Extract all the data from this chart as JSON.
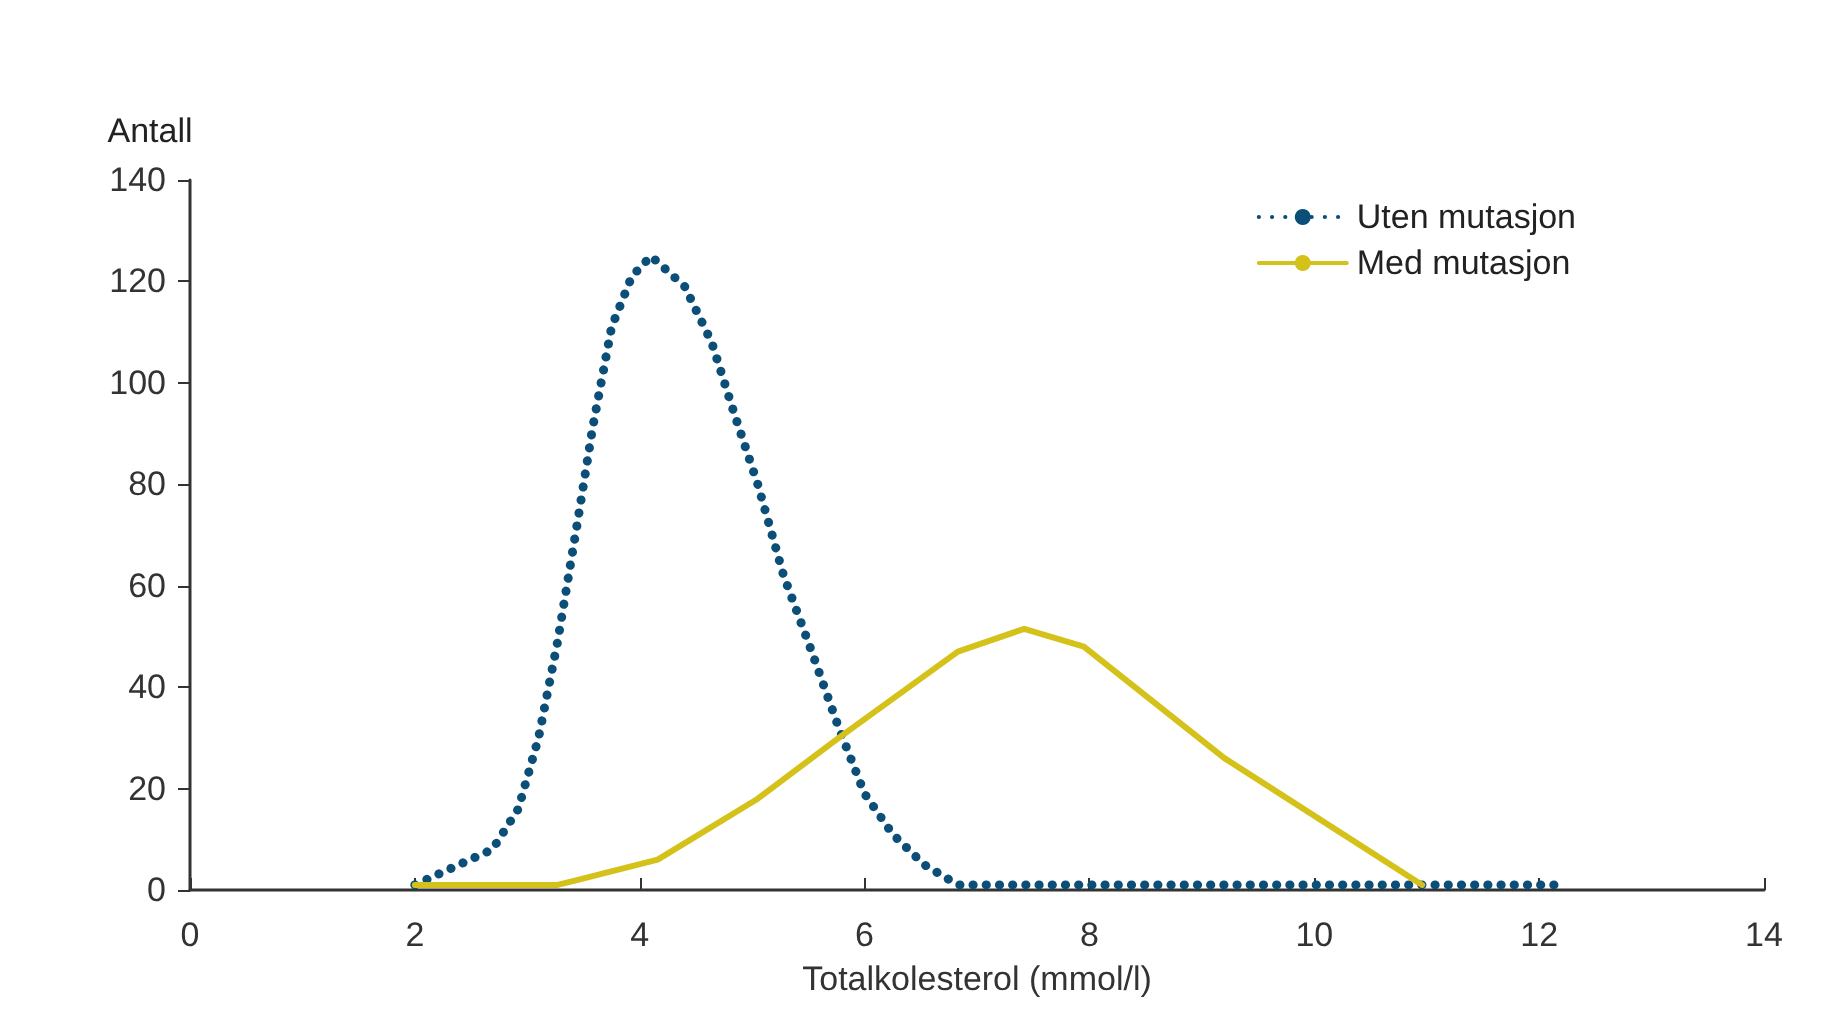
{
  "chart_data": {
    "type": "line",
    "xlabel": "Totalkolesterol (mmol/l)",
    "ylabel": "Antall",
    "xlim": [
      0,
      14
    ],
    "xticks": [
      0,
      2,
      4,
      6,
      8,
      10,
      12,
      14
    ],
    "ylim": [
      0,
      140
    ],
    "yticks": [
      0,
      20,
      40,
      60,
      80,
      100,
      120,
      140
    ],
    "grid": false,
    "legend": "top right",
    "marker": "none",
    "series": [
      {
        "name": "Uten mutasjon",
        "color": "#0b4f78",
        "line_style": "dotted",
        "x": [
          2.0,
          2.69,
          2.92,
          3.1,
          3.27,
          3.45,
          3.58,
          3.75,
          3.93,
          4.1,
          4.4,
          4.64,
          4.84,
          5.05,
          5.28,
          5.53,
          5.77,
          6.0,
          6.25,
          6.53,
          6.83,
          8,
          10,
          12.15
        ],
        "values": [
          1,
          8,
          16,
          30,
          49,
          73,
          91,
          111,
          121,
          125,
          119,
          108,
          94,
          80,
          62,
          47,
          32,
          19,
          11,
          5,
          1,
          1,
          1,
          1
        ]
      },
      {
        "name": "Med mutasjon",
        "color": "#d4c119",
        "line_style": "solid",
        "x": [
          2.0,
          3.27,
          3.45,
          4.16,
          5.05,
          5.77,
          6.83,
          7.42,
          7.95,
          9.2,
          10.96
        ],
        "values": [
          1,
          1,
          2,
          6,
          18,
          30,
          47,
          51.5,
          48,
          26,
          1
        ]
      }
    ]
  }
}
